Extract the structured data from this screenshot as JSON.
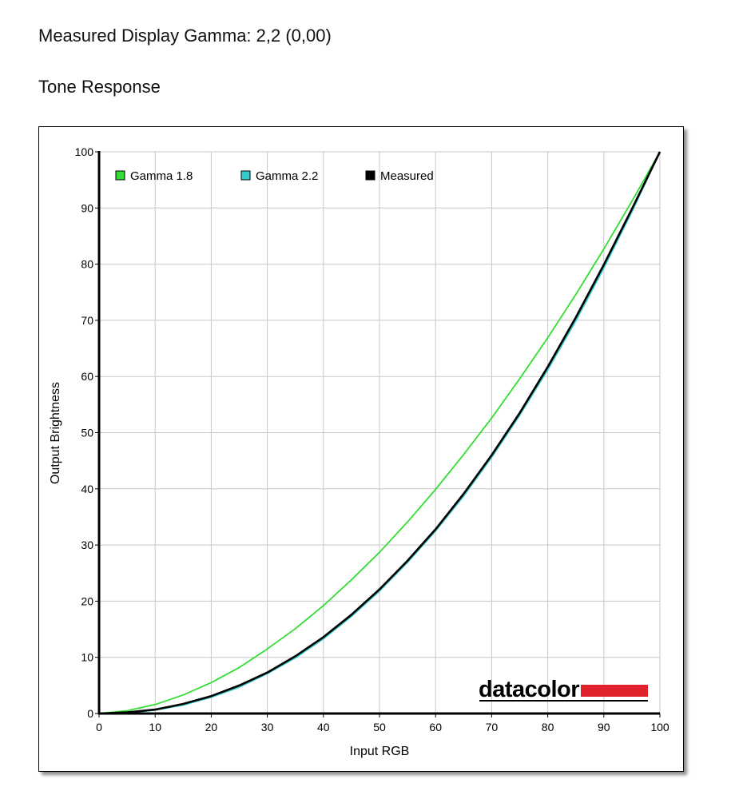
{
  "header": {
    "measured_gamma": "Measured Display Gamma: 2,2 (0,00)",
    "section_title": "Tone Response"
  },
  "brand": {
    "logo_text": "datacolor",
    "accent_color": "#e0222c"
  },
  "colors": {
    "gamma18": "#33dd33",
    "gamma22": "#33cccc",
    "measured": "#000000",
    "grid": "#c8c8c8"
  },
  "chart_data": {
    "type": "line",
    "title": "",
    "xlabel": "Input RGB",
    "ylabel": "Output Brightness",
    "xlim": [
      0,
      100
    ],
    "ylim": [
      0,
      100
    ],
    "xticks": [
      0,
      10,
      20,
      30,
      40,
      50,
      60,
      70,
      80,
      90,
      100
    ],
    "yticks": [
      0,
      10,
      20,
      30,
      40,
      50,
      60,
      70,
      80,
      90,
      100
    ],
    "grid": true,
    "legend_position": "top-left",
    "x": [
      0,
      5,
      10,
      15,
      20,
      25,
      30,
      35,
      40,
      45,
      50,
      55,
      60,
      65,
      70,
      75,
      80,
      85,
      90,
      95,
      100
    ],
    "series": [
      {
        "name": "Gamma 1.8",
        "color": "#33dd33",
        "values": [
          0,
          0.5,
          1.6,
          3.3,
          5.5,
          8.2,
          11.5,
          15.1,
          19.2,
          23.8,
          28.7,
          34.1,
          39.9,
          46.1,
          52.6,
          59.6,
          66.9,
          74.6,
          82.7,
          91.2,
          100
        ]
      },
      {
        "name": "Gamma 2.2",
        "color": "#33cccc",
        "values": [
          0,
          0.1,
          0.6,
          1.5,
          2.9,
          4.7,
          7.1,
          9.9,
          13.3,
          17.3,
          21.8,
          26.9,
          32.5,
          38.7,
          45.6,
          53.1,
          61.2,
          69.9,
          79.3,
          89.3,
          100
        ]
      },
      {
        "name": "Measured",
        "color": "#000000",
        "values": [
          0,
          0.2,
          0.7,
          1.7,
          3.1,
          5.0,
          7.3,
          10.2,
          13.6,
          17.6,
          22.1,
          27.2,
          32.8,
          39.1,
          46.0,
          53.5,
          61.7,
          70.5,
          79.9,
          89.8,
          100
        ]
      }
    ]
  }
}
